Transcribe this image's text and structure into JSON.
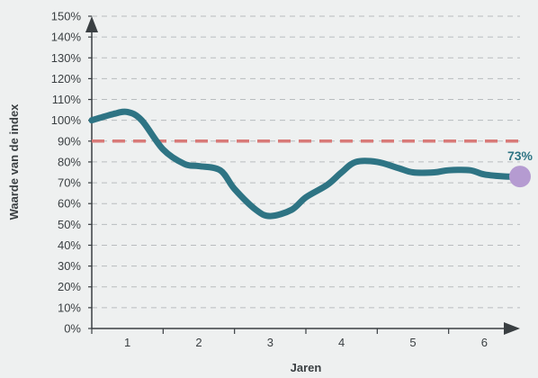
{
  "chart_data": {
    "type": "line",
    "xlabel": "Jaren",
    "ylabel": "Waarde van de index",
    "x_ticks": [
      "1",
      "2",
      "3",
      "4",
      "5",
      "6"
    ],
    "y_ticks": [
      "0%",
      "10%",
      "20%",
      "30%",
      "40%",
      "50%",
      "60%",
      "70%",
      "80%",
      "90%",
      "100%",
      "110%",
      "120%",
      "130%",
      "140%",
      "150%"
    ],
    "ylim": [
      0,
      150
    ],
    "xlim": [
      0.5,
      6.5
    ],
    "grid": true,
    "series": [
      {
        "x": [
          0.5,
          0.8,
          1.0,
          1.2,
          1.5,
          1.8,
          2.0,
          2.3,
          2.5,
          2.8,
          3.0,
          3.3,
          3.5,
          3.8,
          4.0,
          4.2,
          4.5,
          4.8,
          5.0,
          5.3,
          5.5,
          5.8,
          6.0,
          6.3,
          6.5
        ],
        "values": [
          100,
          103,
          104,
          100,
          86,
          79,
          78,
          76,
          67,
          57,
          54,
          57,
          63,
          69,
          75,
          80,
          80,
          77,
          75,
          75,
          76,
          76,
          74,
          73,
          73
        ],
        "color": "#2e7484"
      }
    ],
    "reference_line": {
      "value": 90,
      "color": "#d87a78"
    },
    "end_point": {
      "x": 6.5,
      "value": 73,
      "label": "73%",
      "color": "#b59bd1",
      "label_color": "#2e7484"
    }
  }
}
